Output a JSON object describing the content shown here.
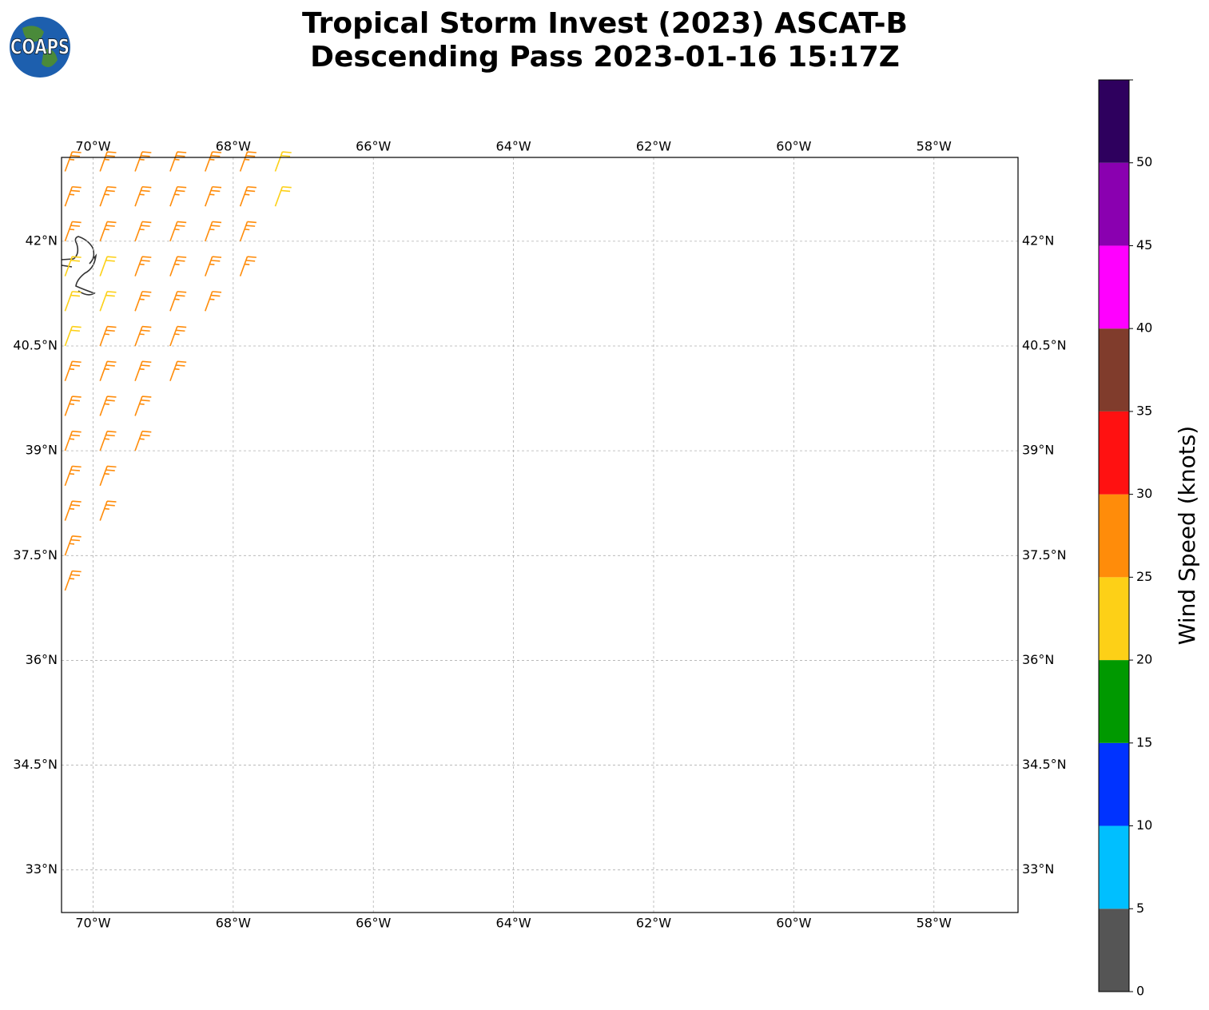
{
  "chart_data": {
    "type": "wind-barb-map",
    "title": "Tropical Storm Invest (2023) ASCAT-B",
    "subtitle": "Descending Pass 2023-01-16 15:17Z",
    "logo": "COAPS",
    "xlim": [
      -70.45,
      -56.8
    ],
    "ylim": [
      32.39,
      43.2
    ],
    "xticks": [
      {
        "value": -70,
        "label": "70°W"
      },
      {
        "value": -68,
        "label": "68°W"
      },
      {
        "value": -66,
        "label": "66°W"
      },
      {
        "value": -64,
        "label": "64°W"
      },
      {
        "value": -62,
        "label": "62°W"
      },
      {
        "value": -60,
        "label": "60°W"
      },
      {
        "value": -58,
        "label": "58°W"
      }
    ],
    "yticks": [
      {
        "value": 42,
        "label": "42°N"
      },
      {
        "value": 40.5,
        "label": "40.5°N"
      },
      {
        "value": 39,
        "label": "39°N"
      },
      {
        "value": 37.5,
        "label": "37.5°N"
      },
      {
        "value": 36,
        "label": "36°N"
      },
      {
        "value": 34.5,
        "label": "34.5°N"
      },
      {
        "value": 33,
        "label": "33°N"
      }
    ],
    "grid": true,
    "wind_from_deg": 20,
    "barb_rows": [
      {
        "lat": 37.0,
        "lon": [
          -70.4
        ],
        "speed": [
          27
        ]
      },
      {
        "lat": 37.5,
        "lon": [
          -70.4
        ],
        "speed": [
          27
        ]
      },
      {
        "lat": 38.0,
        "lon": [
          -70.4,
          -69.9
        ],
        "speed": [
          27,
          27
        ]
      },
      {
        "lat": 38.5,
        "lon": [
          -70.4,
          -69.9
        ],
        "speed": [
          27,
          27
        ]
      },
      {
        "lat": 39.0,
        "lon": [
          -70.4,
          -69.9,
          -69.4
        ],
        "speed": [
          27,
          27,
          27
        ]
      },
      {
        "lat": 39.5,
        "lon": [
          -70.4,
          -69.9,
          -69.4
        ],
        "speed": [
          27,
          27,
          27
        ]
      },
      {
        "lat": 40.0,
        "lon": [
          -70.4,
          -69.9,
          -69.4,
          -68.9
        ],
        "speed": [
          27,
          27,
          27,
          27
        ]
      },
      {
        "lat": 40.5,
        "lon": [
          -70.4,
          -69.9,
          -69.4,
          -68.9
        ],
        "speed": [
          22,
          27,
          27,
          27
        ]
      },
      {
        "lat": 41.0,
        "lon": [
          -70.4,
          -69.9,
          -69.4,
          -68.9,
          -68.4
        ],
        "speed": [
          22,
          22,
          27,
          27,
          27
        ]
      },
      {
        "lat": 41.5,
        "lon": [
          -70.4,
          -69.9,
          -69.4,
          -68.9,
          -68.4,
          -67.9
        ],
        "speed": [
          22,
          22,
          27,
          27,
          27,
          27
        ]
      },
      {
        "lat": 42.0,
        "lon": [
          -70.4,
          -69.9,
          -69.4,
          -68.9,
          -68.4,
          -67.9
        ],
        "speed": [
          27,
          27,
          27,
          27,
          27,
          27
        ]
      },
      {
        "lat": 42.5,
        "lon": [
          -70.4,
          -69.9,
          -69.4,
          -68.9,
          -68.4,
          -67.9,
          -67.4
        ],
        "speed": [
          27,
          27,
          27,
          27,
          27,
          27,
          22
        ]
      },
      {
        "lat": 43.0,
        "lon": [
          -70.4,
          -69.9,
          -69.4,
          -68.9,
          -68.4,
          -67.9,
          -67.4
        ],
        "speed": [
          27,
          27,
          27,
          27,
          27,
          27,
          22
        ]
      }
    ],
    "colorbar": {
      "label": "Wind Speed (knots)",
      "levels": [
        0,
        5,
        10,
        15,
        20,
        25,
        30,
        35,
        40,
        45,
        50,
        55
      ],
      "colors": [
        "#555555",
        "#00bfff",
        "#0033ff",
        "#009900",
        "#fdd017",
        "#ff8c0a",
        "#ff1111",
        "#803c2c",
        "#ff00ff",
        "#8a00b0",
        "#2e005e"
      ],
      "ticks": [
        0,
        5,
        10,
        15,
        20,
        25,
        30,
        35,
        40,
        45,
        50
      ]
    }
  }
}
